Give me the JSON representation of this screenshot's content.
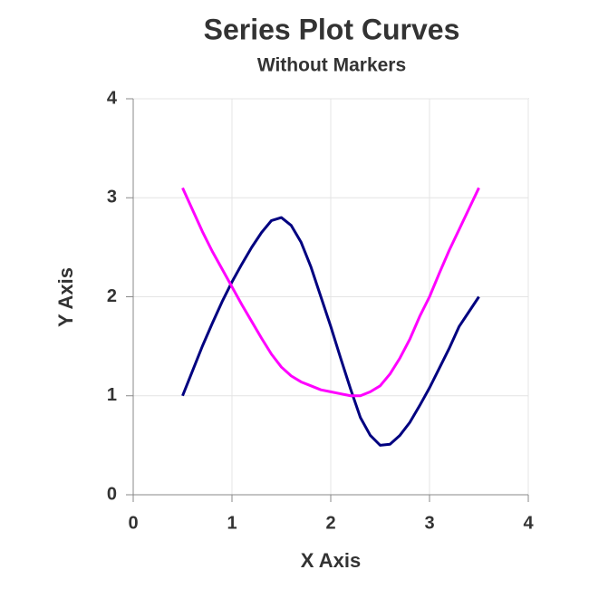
{
  "chart_data": {
    "type": "line",
    "title": "Series Plot Curves",
    "subtitle": "Without Markers",
    "x_label": "X Axis",
    "y_label": "Y Axis",
    "x": [
      0.5,
      0.6,
      0.7,
      0.8,
      0.9,
      1.0,
      1.1,
      1.2,
      1.3,
      1.4,
      1.5,
      1.6,
      1.7,
      1.8,
      1.9,
      2.0,
      2.1,
      2.2,
      2.3,
      2.4,
      2.5,
      2.6,
      2.7,
      2.8,
      2.9,
      3.0,
      3.1,
      3.2,
      3.3,
      3.4,
      3.5
    ],
    "series": [
      {
        "color": "#000080",
        "values": [
          1.0,
          1.25,
          1.5,
          1.73,
          1.95,
          2.15,
          2.33,
          2.5,
          2.65,
          2.77,
          2.8,
          2.72,
          2.55,
          2.3,
          2.0,
          1.7,
          1.38,
          1.07,
          0.78,
          0.6,
          0.5,
          0.51,
          0.6,
          0.73,
          0.9,
          1.08,
          1.28,
          1.48,
          1.7,
          1.85,
          2.0
        ]
      },
      {
        "color": "#ff00ff",
        "values": [
          3.1,
          2.88,
          2.66,
          2.46,
          2.28,
          2.1,
          1.92,
          1.75,
          1.58,
          1.42,
          1.29,
          1.2,
          1.14,
          1.1,
          1.06,
          1.04,
          1.02,
          1.0,
          1.0,
          1.04,
          1.1,
          1.22,
          1.38,
          1.57,
          1.8,
          2.0,
          2.24,
          2.47,
          2.68,
          2.89,
          3.1
        ]
      }
    ],
    "xlim": [
      0,
      4
    ],
    "ylim": [
      0,
      4
    ],
    "xticks": [
      0,
      1,
      2,
      3,
      4
    ],
    "yticks": [
      0,
      1,
      2,
      3,
      4
    ],
    "grid": true
  }
}
